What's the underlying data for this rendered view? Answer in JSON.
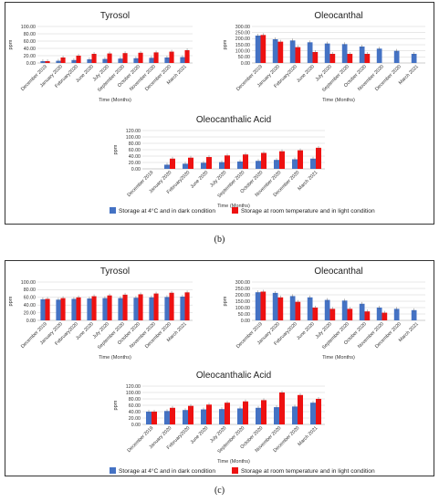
{
  "colors": {
    "dark": "#4472c4",
    "light": "#ee1111",
    "grid": "#d0d0d0",
    "axis": "#999999"
  },
  "legend": {
    "dark": "Storage at 4°C and in dark condition",
    "light": "Storage at room temperature and in light condition"
  },
  "captions": {
    "b": "(b)",
    "c": "(c)"
  },
  "chart_data": [
    {
      "panel": "b",
      "type": "bar",
      "title": "Tyrosol",
      "xlabel": "Time (Months)",
      "ylabel": "ppm",
      "ylim": [
        0,
        100
      ],
      "yticks": [
        "100.00",
        "80.00",
        "60.00",
        "40.00",
        "20.00",
        "0.00"
      ],
      "categories": [
        "December 2019",
        "January 2020",
        "February2020",
        "June 2020",
        "July 2020",
        "September 2020",
        "October 2020",
        "November 2020",
        "December 2020",
        "March 2021"
      ],
      "series": [
        {
          "name": "Storage at 4°C and in dark condition",
          "values": [
            5,
            6,
            8,
            10,
            11,
            12,
            13,
            14,
            15,
            16
          ]
        },
        {
          "name": "Storage at room temperature and in light condition",
          "values": [
            5,
            15,
            20,
            25,
            26,
            27,
            28,
            29,
            31,
            35
          ]
        }
      ]
    },
    {
      "panel": "b",
      "type": "bar",
      "title": "Oleocanthal",
      "xlabel": "Time (Months)",
      "ylabel": "ppm",
      "ylim": [
        0,
        300
      ],
      "yticks": [
        "300.00",
        "250.00",
        "200.00",
        "150.00",
        "100.00",
        "50.00",
        "0.00"
      ],
      "categories": [
        "December 2019",
        "January 2020",
        "February2020",
        "June 2020",
        "July 2020",
        "September 2020",
        "October 2020",
        "November 2020",
        "December 2020",
        "March 2021"
      ],
      "series": [
        {
          "name": "Storage at 4°C and in dark condition",
          "values": [
            225,
            195,
            185,
            170,
            160,
            155,
            135,
            118,
            100,
            75
          ]
        },
        {
          "name": "Storage at room temperature and in light condition",
          "values": [
            230,
            175,
            130,
            90,
            75,
            75,
            75,
            null,
            null,
            null
          ]
        }
      ]
    },
    {
      "panel": "b",
      "type": "bar",
      "title": "Oleocanthalic Acid",
      "xlabel": "Time (Months)",
      "ylabel": "ppm",
      "ylim": [
        0,
        120
      ],
      "yticks": [
        "120.00",
        "100.00",
        "80.00",
        "60.00",
        "40.00",
        "20.00",
        "0.00"
      ],
      "categories": [
        "December 2019",
        "January 2020",
        "February2020",
        "June 2020",
        "July 2020",
        "September 2020",
        "October 2020",
        "November 2020",
        "December 2020",
        "March 2021"
      ],
      "series": [
        {
          "name": "Storage at 4°C and in dark condition",
          "values": [
            0,
            13,
            16,
            19,
            21,
            23,
            25,
            28,
            30,
            32
          ]
        },
        {
          "name": "Storage at room temperature and in light condition",
          "values": [
            0,
            32,
            35,
            37,
            42,
            45,
            50,
            55,
            58,
            66
          ]
        }
      ]
    },
    {
      "panel": "c",
      "type": "bar",
      "title": "Tyrosol",
      "xlabel": "Time (Months)",
      "ylabel": "ppm",
      "ylim": [
        0,
        100
      ],
      "yticks": [
        "100.00",
        "80.00",
        "60.00",
        "40.00",
        "20.00",
        "0.00"
      ],
      "categories": [
        "December 2019",
        "January 2020",
        "February2020",
        "June 2020",
        "July 2020",
        "September 2020",
        "October 2020",
        "November 2020",
        "December 2020",
        "March 2021"
      ],
      "series": [
        {
          "name": "Storage at 4°C and in dark condition",
          "values": [
            55,
            54,
            56,
            57,
            58,
            58,
            59,
            60,
            61,
            62
          ]
        },
        {
          "name": "Storage at room temperature and in light condition",
          "values": [
            56,
            58,
            60,
            63,
            65,
            67,
            68,
            70,
            72,
            73
          ]
        }
      ]
    },
    {
      "panel": "c",
      "type": "bar",
      "title": "Oleocanthal",
      "xlabel": "Time (Months)",
      "ylabel": "ppm",
      "ylim": [
        0,
        300
      ],
      "yticks": [
        "300.00",
        "250.00",
        "200.00",
        "150.00",
        "100.00",
        "50.00",
        "0.00"
      ],
      "categories": [
        "December 2019",
        "January 2020",
        "February2020",
        "June 2020",
        "July 2020",
        "September 2020",
        "October 2020",
        "November 2020",
        "December 2020",
        "March 2021"
      ],
      "series": [
        {
          "name": "Storage at 4°C and in dark condition",
          "values": [
            220,
            215,
            190,
            180,
            160,
            155,
            130,
            100,
            90,
            80
          ]
        },
        {
          "name": "Storage at room temperature and in light condition",
          "values": [
            225,
            180,
            145,
            100,
            90,
            90,
            70,
            60,
            null,
            null
          ]
        }
      ]
    },
    {
      "panel": "c",
      "type": "bar",
      "title": "Oleocanthalic Acid",
      "xlabel": "Time (Months)",
      "ylabel": "ppm",
      "ylim": [
        0,
        120
      ],
      "yticks": [
        "120.00",
        "100.00",
        "80.00",
        "60.00",
        "40.00",
        "20.00",
        "0.00"
      ],
      "categories": [
        "December 2019",
        "January 2020",
        "February2020",
        "June 2020",
        "July 2020",
        "September 2020",
        "October 2020",
        "November 2020",
        "December 2020",
        "March 2021"
      ],
      "series": [
        {
          "name": "Storage at 4°C and in dark condition",
          "values": [
            40,
            42,
            45,
            47,
            48,
            50,
            52,
            54,
            56,
            68
          ]
        },
        {
          "name": "Storage at room temperature and in light condition",
          "values": [
            40,
            52,
            58,
            62,
            68,
            72,
            76,
            100,
            92,
            80
          ]
        }
      ]
    }
  ]
}
